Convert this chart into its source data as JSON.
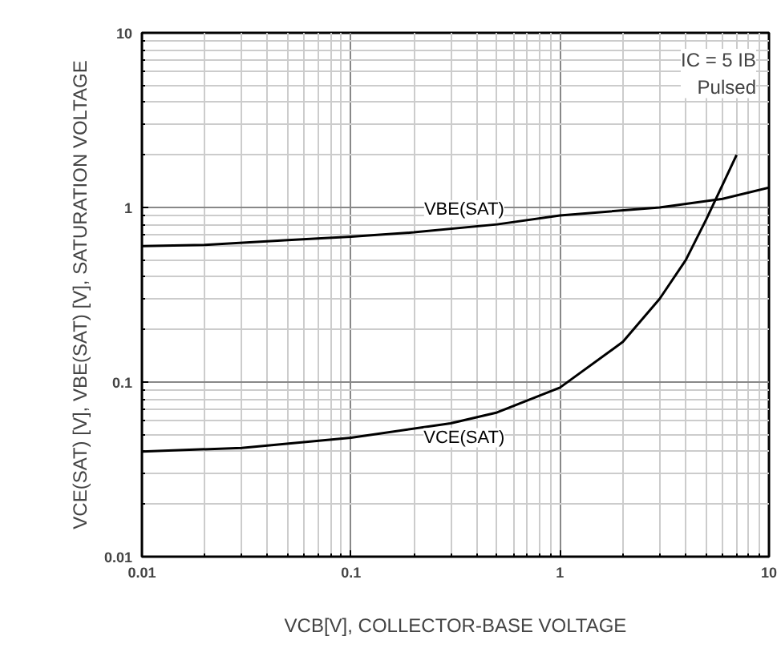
{
  "chart_data": {
    "type": "line",
    "xlabel": "VCB[V], COLLECTOR-BASE VOLTAGE",
    "ylabel": "VCE(SAT) [V], VBE(SAT) [V], SATURATION VOLTAGE",
    "log": "xy",
    "grid": true,
    "line_style": "solid",
    "xlim": [
      0.01,
      10
    ],
    "ylim": [
      0.01,
      10
    ],
    "xticks": [
      0.01,
      0.1,
      1,
      10
    ],
    "yticks": [
      0.01,
      0.1,
      1,
      10
    ],
    "series": [
      {
        "name": "VCE(SAT)",
        "color": "#000000",
        "x": [
          0.01,
          0.03,
          0.1,
          0.3,
          0.5,
          1,
          2,
          3,
          4,
          5,
          6,
          7
        ],
        "values": [
          0.04,
          0.042,
          0.048,
          0.058,
          0.067,
          0.093,
          0.17,
          0.3,
          0.5,
          0.85,
          1.35,
          2.0
        ]
      },
      {
        "name": "VBE(SAT)",
        "color": "#000000",
        "x": [
          0.01,
          0.02,
          0.05,
          0.1,
          0.2,
          0.5,
          1,
          3,
          6,
          10
        ],
        "values": [
          0.6,
          0.61,
          0.65,
          0.68,
          0.72,
          0.8,
          0.9,
          1.0,
          1.12,
          1.3
        ]
      }
    ],
    "annotations": [
      "IC = 5 IB\nPulsed"
    ]
  }
}
